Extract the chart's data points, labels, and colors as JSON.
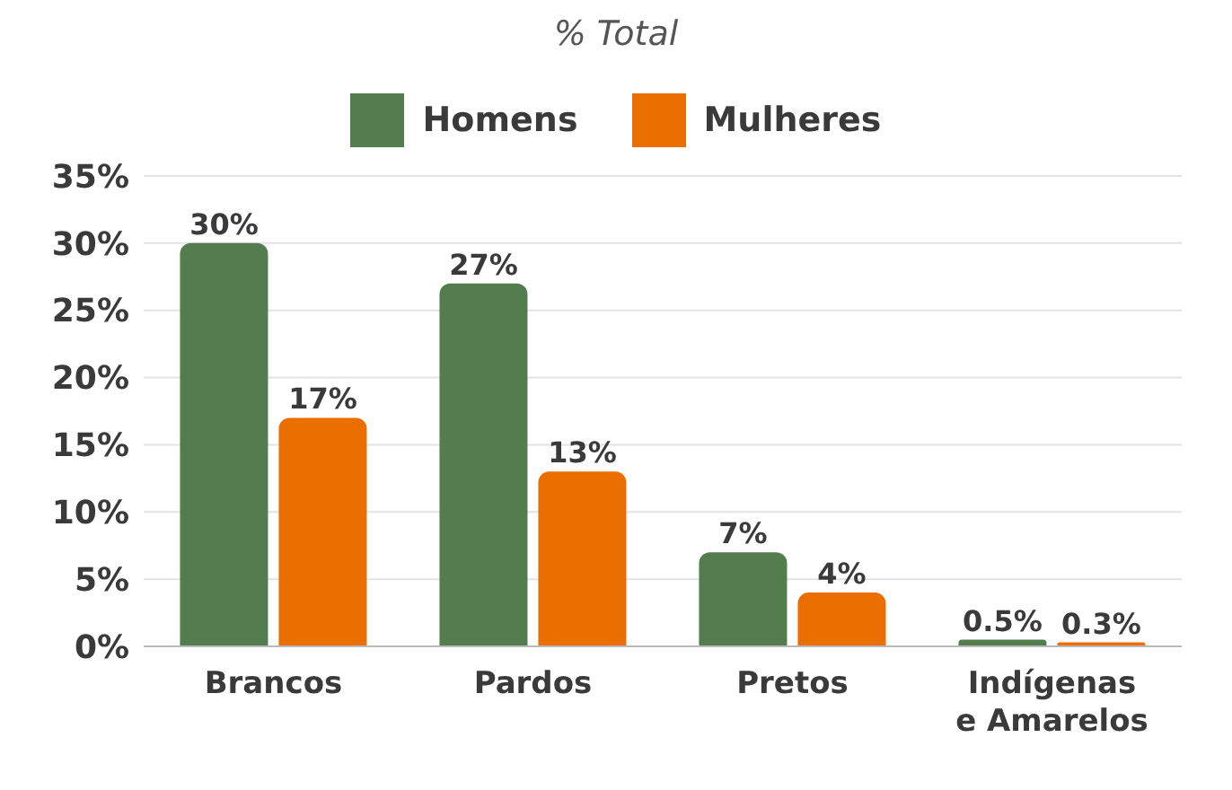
{
  "chart_data": {
    "type": "bar",
    "title": "% Total",
    "categories": [
      "Brancos",
      "Pardos",
      "Pretos",
      "Indígenas e Amarelos"
    ],
    "series": [
      {
        "name": "Homens",
        "color": "#537d4f",
        "values": [
          30,
          27,
          7,
          0.5
        ],
        "value_labels": [
          "30%",
          "27%",
          "7%",
          "0.5%"
        ]
      },
      {
        "name": "Mulheres",
        "color": "#eb6e00",
        "values": [
          17,
          13,
          4,
          0.3
        ],
        "value_labels": [
          "17%",
          "13%",
          "4%",
          "0.3%"
        ]
      }
    ],
    "ylim": [
      0,
      35
    ],
    "yticks": [
      {
        "value": 0,
        "label": "0%"
      },
      {
        "value": 5,
        "label": "5%"
      },
      {
        "value": 10,
        "label": "10%"
      },
      {
        "value": 15,
        "label": "15%"
      },
      {
        "value": 20,
        "label": "20%"
      },
      {
        "value": 25,
        "label": "25%"
      },
      {
        "value": 30,
        "label": "30%"
      },
      {
        "value": 35,
        "label": "35%"
      }
    ],
    "grid": "y",
    "legend": "top"
  }
}
